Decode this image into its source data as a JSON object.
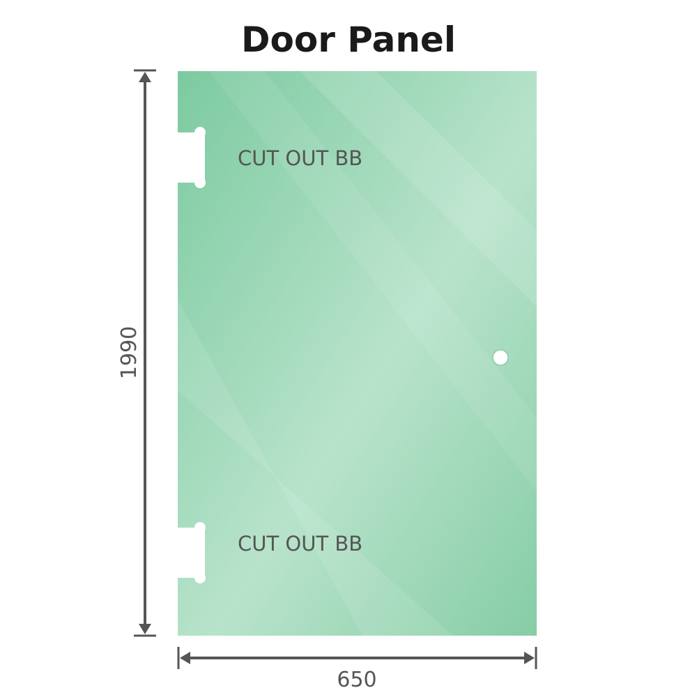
{
  "title": "Door Panel",
  "panel": {
    "color": "#8ed1ad",
    "cutouts": [
      {
        "label": "CUT OUT BB"
      },
      {
        "label": "CUT OUT BB"
      }
    ]
  },
  "dimensions": {
    "height": "1990",
    "width": "650"
  }
}
